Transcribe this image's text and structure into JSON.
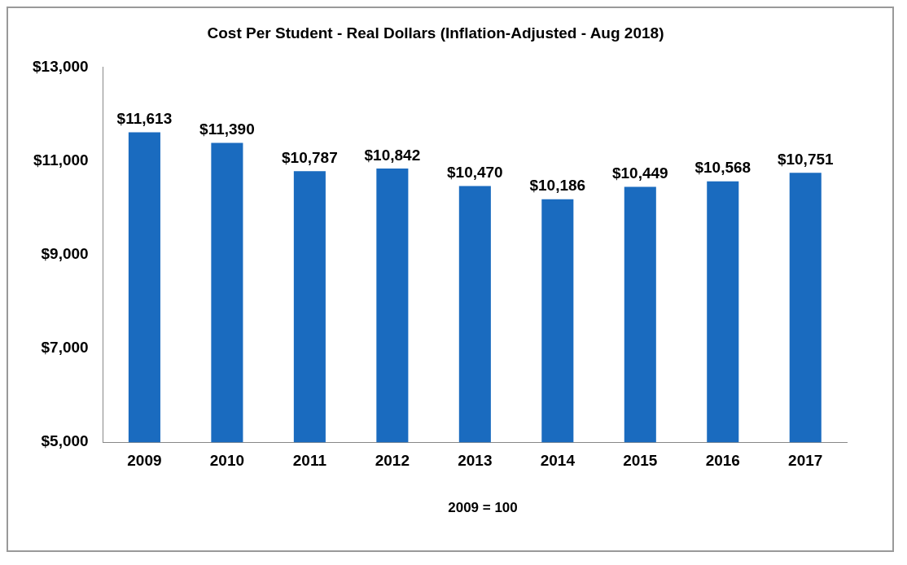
{
  "chart_data": {
    "type": "bar",
    "title": "Cost Per Student - Real Dollars (Inflation-Adjusted - Aug 2018)",
    "categories": [
      "2009",
      "2010",
      "2011",
      "2012",
      "2013",
      "2014",
      "2015",
      "2016",
      "2017"
    ],
    "values": [
      11613,
      11390,
      10787,
      10842,
      10470,
      10186,
      10449,
      10568,
      10751
    ],
    "value_labels": [
      "$11,613",
      "$11,390",
      "$10,787",
      "$10,842",
      "$10,470",
      "$10,186",
      "$10,449",
      "$10,568",
      "$10,751"
    ],
    "color": "#1a6bbf",
    "ylim": [
      5000,
      13000
    ],
    "yticks": [
      {
        "value": 5000,
        "label": "$5,000"
      },
      {
        "value": 7000,
        "label": "$7,000"
      },
      {
        "value": 9000,
        "label": "$9,000"
      },
      {
        "value": 11000,
        "label": "$11,000"
      },
      {
        "value": 13000,
        "label": "$13,000"
      }
    ],
    "grid": false,
    "legend": false,
    "annotations": [
      "2009 = 100"
    ]
  }
}
